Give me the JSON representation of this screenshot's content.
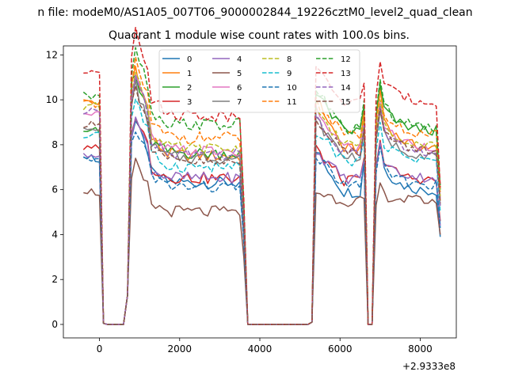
{
  "figure": {
    "suptitle": "n file: modeM0/AS1A05_007T06_9000002844_19226cztM0_level2_quad_clean",
    "x_offset_label": "+2.9333e8"
  },
  "chart_data": {
    "type": "line",
    "title": "Quadrant 1 module wise count rates with 100.0s bins.",
    "xlabel": "",
    "ylabel": "",
    "xlim": [
      -900,
      8900
    ],
    "ylim": [
      -0.6,
      12.4
    ],
    "x_ticks": [
      0,
      2000,
      4000,
      6000,
      8000
    ],
    "y_ticks": [
      0,
      2,
      4,
      6,
      8,
      10,
      12
    ],
    "legend_position": "upper center",
    "legend_columns": 4,
    "grid": false,
    "series": [
      {
        "name": "0",
        "color": "#1f77b4",
        "dash": "solid",
        "base": [
          7.4,
          6.3,
          7.7,
          5.9,
          3.9
        ]
      },
      {
        "name": "1",
        "color": "#ff7f0e",
        "dash": "solid",
        "base": [
          9.9,
          7.5,
          10.1,
          7.8,
          5.5
        ]
      },
      {
        "name": "2",
        "color": "#2ca02c",
        "dash": "solid",
        "base": [
          8.7,
          7.6,
          10.3,
          8.6,
          6.0
        ]
      },
      {
        "name": "3",
        "color": "#d62728",
        "dash": "solid",
        "base": [
          7.9,
          6.5,
          7.8,
          6.4,
          4.6
        ]
      },
      {
        "name": "4",
        "color": "#9467bd",
        "dash": "solid",
        "base": [
          7.6,
          6.5,
          7.7,
          6.5,
          4.4
        ]
      },
      {
        "name": "5",
        "color": "#8c564b",
        "dash": "solid",
        "base": [
          5.9,
          5.0,
          5.9,
          5.5,
          4.0
        ]
      },
      {
        "name": "6",
        "color": "#e377c2",
        "dash": "solid",
        "base": [
          9.3,
          7.7,
          9.5,
          7.9,
          5.6
        ]
      },
      {
        "name": "7",
        "color": "#7f7f7f",
        "dash": "solid",
        "base": [
          8.8,
          7.4,
          9.1,
          7.5,
          5.3
        ]
      },
      {
        "name": "8",
        "color": "#bcbd22",
        "dash": "dashed",
        "base": [
          9.7,
          7.8,
          9.6,
          8.0,
          5.7
        ]
      },
      {
        "name": "9",
        "color": "#17becf",
        "dash": "dashed",
        "base": [
          8.4,
          7.0,
          8.6,
          7.3,
          5.0
        ]
      },
      {
        "name": "10",
        "color": "#1f77b4",
        "dash": "dashed",
        "base": [
          7.3,
          6.1,
          7.5,
          6.2,
          4.3
        ]
      },
      {
        "name": "11",
        "color": "#ff7f0e",
        "dash": "dashed",
        "base": [
          9.8,
          8.3,
          10.0,
          8.4,
          5.9
        ]
      },
      {
        "name": "12",
        "color": "#2ca02c",
        "dash": "dashed",
        "base": [
          10.2,
          8.9,
          10.5,
          8.7,
          6.2
        ]
      },
      {
        "name": "13",
        "color": "#d62728",
        "dash": "dashed",
        "base": [
          11.3,
          9.3,
          11.3,
          9.9,
          6.1
        ]
      },
      {
        "name": "14",
        "color": "#9467bd",
        "dash": "dashed",
        "base": [
          9.5,
          7.6,
          9.3,
          7.6,
          5.2
        ]
      },
      {
        "name": "15",
        "color": "#8c564b",
        "dash": "dashed",
        "base": [
          8.9,
          7.2,
          9.2,
          7.7,
          5.4
        ]
      }
    ],
    "time_segments": {
      "base_keys": [
        "pre_start",
        "orbit1_end",
        "orbit2_start",
        "orbit2_end",
        "final"
      ],
      "description_values": {
        "pre_window": [
          -400,
          100
        ],
        "gap1": [
          100,
          600
        ],
        "orbit1": [
          700,
          3600
        ],
        "gap2": [
          3700,
          5300
        ],
        "orbit2": [
          5300,
          6650
        ],
        "gap3": [
          6700,
          6800
        ],
        "orbit3": [
          6900,
          8500
        ]
      }
    }
  }
}
